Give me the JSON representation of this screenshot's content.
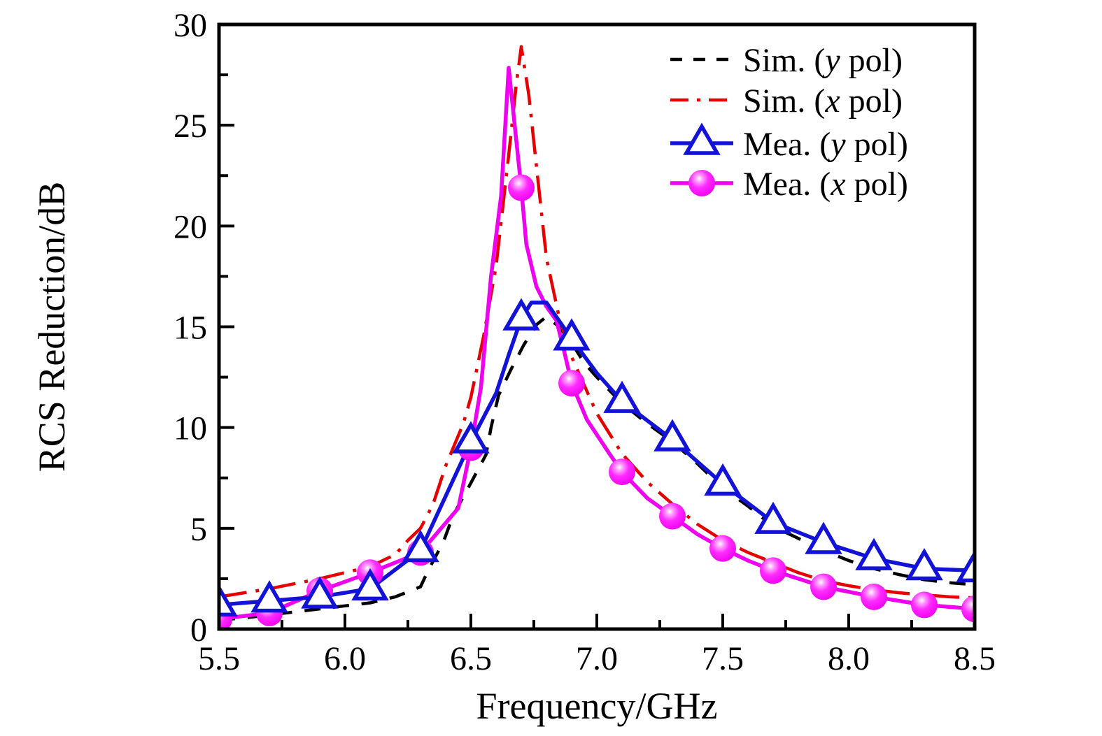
{
  "axes": {
    "frame_color": "#000000",
    "x": {
      "title": "Frequency/GHz",
      "min": 5.5,
      "max": 8.5,
      "major_ticks": [
        5.5,
        6.0,
        6.5,
        7.0,
        7.5,
        8.0,
        8.5
      ],
      "major_tick_labels": [
        "5.5",
        "6.0",
        "6.5",
        "7.0",
        "7.5",
        "8.0",
        "8.5"
      ],
      "minor_ticks": [
        5.75,
        6.25,
        6.75,
        7.25,
        7.75,
        8.25
      ]
    },
    "y": {
      "title": "RCS Reduction/dB",
      "min": 0,
      "max": 30,
      "major_ticks": [
        0,
        5,
        10,
        15,
        20,
        25,
        30
      ],
      "major_tick_labels": [
        "0",
        "5",
        "10",
        "15",
        "20",
        "25",
        "30"
      ],
      "minor_ticks": [
        2.5,
        7.5,
        12.5,
        17.5,
        22.5,
        27.5
      ]
    }
  },
  "chart_data": {
    "type": "line",
    "title": "",
    "xlabel": "Frequency/GHz",
    "ylabel": "RCS Reduction/dB",
    "xlim": [
      5.5,
      8.5
    ],
    "ylim": [
      0,
      30
    ],
    "grid": false,
    "legend_position": "top-right-inside",
    "series": [
      {
        "key": "sim-y",
        "name": "Sim. (y pol)",
        "color": "#000000",
        "line_style": "dashed",
        "marker": "none",
        "points": [
          [
            5.5,
            0.45
          ],
          [
            5.6,
            0.55
          ],
          [
            5.7,
            0.7
          ],
          [
            5.8,
            0.85
          ],
          [
            5.9,
            1.0
          ],
          [
            6.0,
            1.15
          ],
          [
            6.1,
            1.3
          ],
          [
            6.2,
            1.6
          ],
          [
            6.3,
            2.1
          ],
          [
            6.33,
            2.9
          ],
          [
            6.39,
            4.3
          ],
          [
            6.43,
            5.65
          ],
          [
            6.5,
            7.25
          ],
          [
            6.56,
            8.65
          ],
          [
            6.58,
            10.0
          ],
          [
            6.61,
            11.6
          ],
          [
            6.66,
            12.9
          ],
          [
            6.71,
            14.1
          ],
          [
            6.76,
            15.1
          ],
          [
            6.8,
            15.5
          ],
          [
            6.85,
            15.0
          ],
          [
            6.9,
            14.2
          ],
          [
            6.95,
            13.2
          ],
          [
            7.0,
            12.5
          ],
          [
            7.1,
            11.2
          ],
          [
            7.2,
            10.2
          ],
          [
            7.3,
            9.3
          ],
          [
            7.4,
            8.2
          ],
          [
            7.5,
            7.0
          ],
          [
            7.6,
            6.1
          ],
          [
            7.7,
            5.1
          ],
          [
            7.8,
            4.5
          ],
          [
            7.9,
            3.9
          ],
          [
            8.0,
            3.4
          ],
          [
            8.1,
            3.0
          ],
          [
            8.2,
            2.7
          ],
          [
            8.3,
            2.45
          ],
          [
            8.4,
            2.3
          ],
          [
            8.5,
            2.2
          ]
        ]
      },
      {
        "key": "sim-x",
        "name": "Sim. (x pol)",
        "color": "#e60000",
        "line_style": "dash-dot",
        "marker": "none",
        "points": [
          [
            5.5,
            1.6
          ],
          [
            5.6,
            1.8
          ],
          [
            5.7,
            2.0
          ],
          [
            5.8,
            2.25
          ],
          [
            5.9,
            2.5
          ],
          [
            6.0,
            2.8
          ],
          [
            6.1,
            3.1
          ],
          [
            6.2,
            3.7
          ],
          [
            6.25,
            4.4
          ],
          [
            6.3,
            5.0
          ],
          [
            6.35,
            6.2
          ],
          [
            6.4,
            8.1
          ],
          [
            6.47,
            10.2
          ],
          [
            6.5,
            11.5
          ],
          [
            6.55,
            14.5
          ],
          [
            6.6,
            18.0
          ],
          [
            6.65,
            23.5
          ],
          [
            6.68,
            27.0
          ],
          [
            6.7,
            28.9
          ],
          [
            6.73,
            26.5
          ],
          [
            6.76,
            23.0
          ],
          [
            6.8,
            18.4
          ],
          [
            6.85,
            15.5
          ],
          [
            6.9,
            13.5
          ],
          [
            7.0,
            10.7
          ],
          [
            7.1,
            8.7
          ],
          [
            7.2,
            7.3
          ],
          [
            7.3,
            6.2
          ],
          [
            7.4,
            5.2
          ],
          [
            7.5,
            4.4
          ],
          [
            7.6,
            3.8
          ],
          [
            7.7,
            3.3
          ],
          [
            7.8,
            2.8
          ],
          [
            7.9,
            2.4
          ],
          [
            8.0,
            2.15
          ],
          [
            8.1,
            1.95
          ],
          [
            8.2,
            1.8
          ],
          [
            8.3,
            1.7
          ],
          [
            8.4,
            1.6
          ],
          [
            8.5,
            1.55
          ]
        ]
      },
      {
        "key": "mea-y",
        "name": "Mea. (y pol)",
        "color": "#1212d9",
        "line_style": "solid",
        "marker": "triangle-open",
        "points": [
          [
            5.5,
            1.2
          ],
          [
            5.7,
            1.4
          ],
          [
            5.9,
            1.6
          ],
          [
            6.1,
            2.0
          ],
          [
            6.3,
            3.9
          ],
          [
            6.5,
            9.3
          ],
          [
            6.6,
            11.7
          ],
          [
            6.65,
            13.6
          ],
          [
            6.7,
            15.4
          ],
          [
            6.74,
            16.2
          ],
          [
            6.8,
            16.2
          ],
          [
            6.85,
            15.3
          ],
          [
            6.9,
            14.4
          ],
          [
            7.0,
            12.7
          ],
          [
            7.1,
            11.3
          ],
          [
            7.3,
            9.4
          ],
          [
            7.5,
            7.2
          ],
          [
            7.7,
            5.3
          ],
          [
            7.9,
            4.3
          ],
          [
            8.1,
            3.5
          ],
          [
            8.3,
            3.0
          ],
          [
            8.5,
            2.9
          ]
        ],
        "marker_points": [
          [
            5.5,
            1.2
          ],
          [
            5.7,
            1.4
          ],
          [
            5.9,
            1.6
          ],
          [
            6.1,
            2.0
          ],
          [
            6.3,
            3.9
          ],
          [
            6.5,
            9.3
          ],
          [
            6.7,
            15.4
          ],
          [
            6.9,
            14.4
          ],
          [
            7.1,
            11.3
          ],
          [
            7.3,
            9.4
          ],
          [
            7.5,
            7.2
          ],
          [
            7.7,
            5.3
          ],
          [
            7.9,
            4.3
          ],
          [
            8.1,
            3.5
          ],
          [
            8.3,
            3.0
          ],
          [
            8.5,
            2.9
          ]
        ]
      },
      {
        "key": "mea-x",
        "name": "Mea. (x pol)",
        "color": "#f000f0",
        "line_style": "solid",
        "marker": "sphere",
        "sphere_gradient": [
          "#ffffff",
          "#ffa0ff",
          "#ff2bff",
          "#ef00ef"
        ],
        "points": [
          [
            5.5,
            0.5
          ],
          [
            5.7,
            0.8
          ],
          [
            5.9,
            1.9
          ],
          [
            6.1,
            2.8
          ],
          [
            6.3,
            3.8
          ],
          [
            6.45,
            6.0
          ],
          [
            6.5,
            9.0
          ],
          [
            6.54,
            12.0
          ],
          [
            6.58,
            17.5
          ],
          [
            6.62,
            21.5
          ],
          [
            6.65,
            27.85
          ],
          [
            6.7,
            21.9
          ],
          [
            6.72,
            19.1
          ],
          [
            6.76,
            17.0
          ],
          [
            6.8,
            16.0
          ],
          [
            6.84,
            15.3
          ],
          [
            6.87,
            13.8
          ],
          [
            6.9,
            12.2
          ],
          [
            6.96,
            10.4
          ],
          [
            7.05,
            8.7
          ],
          [
            7.1,
            7.8
          ],
          [
            7.2,
            6.5
          ],
          [
            7.3,
            5.6
          ],
          [
            7.4,
            4.7
          ],
          [
            7.5,
            4.0
          ],
          [
            7.6,
            3.4
          ],
          [
            7.7,
            2.9
          ],
          [
            7.8,
            2.5
          ],
          [
            7.9,
            2.1
          ],
          [
            8.0,
            1.85
          ],
          [
            8.1,
            1.6
          ],
          [
            8.2,
            1.4
          ],
          [
            8.3,
            1.2
          ],
          [
            8.4,
            1.1
          ],
          [
            8.5,
            1.0
          ]
        ],
        "marker_points": [
          [
            5.5,
            0.5
          ],
          [
            5.7,
            0.8
          ],
          [
            5.9,
            1.9
          ],
          [
            6.1,
            2.8
          ],
          [
            6.3,
            3.8
          ],
          [
            6.5,
            9.0
          ],
          [
            6.7,
            21.9
          ],
          [
            6.9,
            12.2
          ],
          [
            7.1,
            7.8
          ],
          [
            7.3,
            5.6
          ],
          [
            7.5,
            4.0
          ],
          [
            7.7,
            2.9
          ],
          [
            7.9,
            2.1
          ],
          [
            8.1,
            1.6
          ],
          [
            8.3,
            1.2
          ],
          [
            8.5,
            1.0
          ]
        ]
      }
    ]
  },
  "legend": {
    "items": [
      {
        "series": 0,
        "parts": [
          {
            "text": "Sim. ("
          },
          {
            "text": "y",
            "italic": true
          },
          {
            "text": " pol)"
          }
        ]
      },
      {
        "series": 1,
        "parts": [
          {
            "text": "Sim. ("
          },
          {
            "text": "x",
            "italic": true
          },
          {
            "text": " pol)"
          }
        ]
      },
      {
        "series": 2,
        "parts": [
          {
            "text": "Mea. ("
          },
          {
            "text": "y",
            "italic": true
          },
          {
            "text": " pol)"
          }
        ]
      },
      {
        "series": 3,
        "parts": [
          {
            "text": "Mea. ("
          },
          {
            "text": "x",
            "italic": true
          },
          {
            "text": " pol)"
          }
        ]
      }
    ]
  }
}
